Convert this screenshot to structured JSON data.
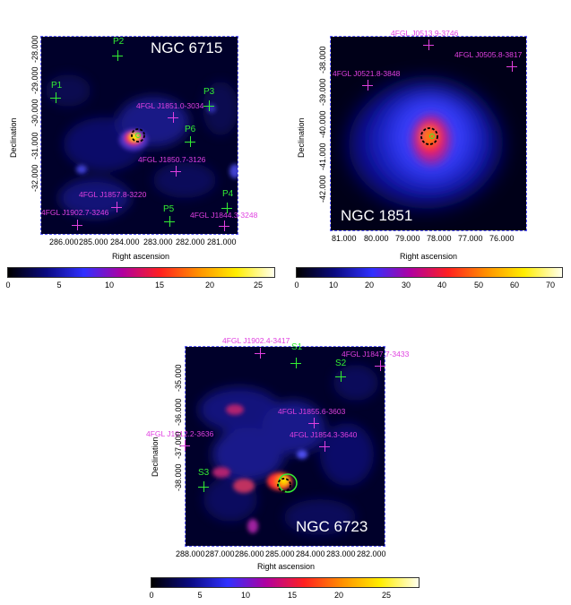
{
  "colors": {
    "magenta": "#e040e0",
    "green": "#33ee33",
    "map_bg": "#000033"
  },
  "colorbar_gradient": "linear-gradient(to right, #000000, #0a0a80, #3030ff, #b000a0, #ff2020, #ff9000, #ffee00, #ffffee)",
  "panels": [
    {
      "name": "NGC 6715",
      "ylabel": "Declination",
      "xlabel": "Right ascension",
      "xticks": [
        "286.000",
        "285.000",
        "284.000",
        "283.000",
        "282.000",
        "281.000"
      ],
      "yticks": [
        "-28.000",
        "-29.000",
        "-30.000",
        "-31.000",
        "-32.000"
      ],
      "cbar_ticks": [
        "0",
        "5",
        "10",
        "15",
        "20",
        "25"
      ],
      "sources": [
        {
          "label": "P1",
          "kind": "green"
        },
        {
          "label": "P2",
          "kind": "green"
        },
        {
          "label": "P3",
          "kind": "green"
        },
        {
          "label": "P6",
          "kind": "green"
        },
        {
          "label": "P4",
          "kind": "green"
        },
        {
          "label": "P5",
          "kind": "green"
        },
        {
          "label": "4FGL J1851.0-3034",
          "kind": "magenta"
        },
        {
          "label": "4FGL J1850.7-3126",
          "kind": "magenta"
        },
        {
          "label": "4FGL J1857.8-3220",
          "kind": "magenta"
        },
        {
          "label": "4FGL J1902.7-3246",
          "kind": "magenta"
        },
        {
          "label": "4FGL J1844.3-3248",
          "kind": "magenta"
        }
      ]
    },
    {
      "name": "NGC 1851",
      "ylabel": "Declination",
      "xlabel": "Right ascension",
      "xticks": [
        "81.000",
        "80.000",
        "79.000",
        "78.000",
        "77.000",
        "76.000"
      ],
      "yticks": [
        "-38.000",
        "-39.000",
        "-40.000",
        "-41.000",
        "-42.000"
      ],
      "cbar_ticks": [
        "0",
        "10",
        "20",
        "30",
        "40",
        "50",
        "60",
        "70"
      ],
      "sources": [
        {
          "label": "4FGL J0513.9-3746",
          "kind": "magenta"
        },
        {
          "label": "4FGL J0505.8-3817",
          "kind": "magenta"
        },
        {
          "label": "4FGL J0521.8-3848",
          "kind": "magenta"
        }
      ]
    },
    {
      "name": "NGC 6723",
      "ylabel": "Declination",
      "xlabel": "Right ascension",
      "xticks": [
        "288.000",
        "287.000",
        "286.000",
        "285.000",
        "284.000",
        "283.000",
        "282.000"
      ],
      "yticks": [
        "-35.000",
        "-36.000",
        "-37.000",
        "-38.000"
      ],
      "cbar_ticks": [
        "0",
        "5",
        "10",
        "15",
        "20",
        "25"
      ],
      "sources": [
        {
          "label": "4FGL J1902.4-3417",
          "kind": "magenta"
        },
        {
          "label": "S1",
          "kind": "green"
        },
        {
          "label": "4FGL J1847.7-3433",
          "kind": "magenta"
        },
        {
          "label": "S2",
          "kind": "green"
        },
        {
          "label": "4FGL J1855.6-3603",
          "kind": "magenta"
        },
        {
          "label": "4FGL J1912.2-3636",
          "kind": "magenta"
        },
        {
          "label": "4FGL J1854.3-3640",
          "kind": "magenta"
        },
        {
          "label": "S3",
          "kind": "green"
        }
      ]
    }
  ]
}
